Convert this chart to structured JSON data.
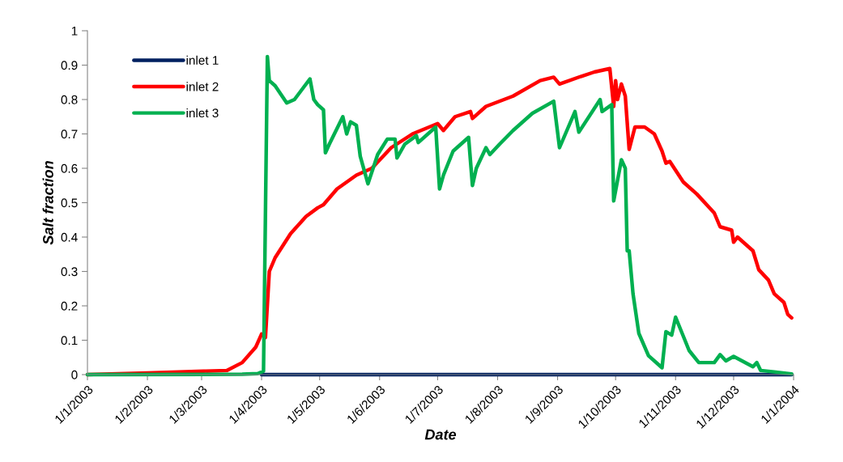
{
  "chart_data": {
    "type": "line",
    "xlabel": "Date",
    "ylabel": "Salt fraction",
    "xlim": [
      "2003-01-01",
      "2004-01-01"
    ],
    "xticks": [
      {
        "value": "2003-01-01",
        "label": "1/1/2003"
      },
      {
        "value": "2003-02-01",
        "label": "1/2/2003"
      },
      {
        "value": "2003-03-01",
        "label": "1/3/2003"
      },
      {
        "value": "2003-04-01",
        "label": "1/4/2003"
      },
      {
        "value": "2003-05-01",
        "label": "1/5/2003"
      },
      {
        "value": "2003-06-01",
        "label": "1/6/2003"
      },
      {
        "value": "2003-07-01",
        "label": "1/7/2003"
      },
      {
        "value": "2003-08-01",
        "label": "1/8/2003"
      },
      {
        "value": "2003-09-01",
        "label": "1/9/2003"
      },
      {
        "value": "2003-10-01",
        "label": "1/10/2003"
      },
      {
        "value": "2003-11-01",
        "label": "1/11/2003"
      },
      {
        "value": "2003-12-01",
        "label": "1/12/2003"
      },
      {
        "value": "2004-01-01",
        "label": "1/1/2004"
      }
    ],
    "ylim": [
      0,
      1
    ],
    "yticks": [
      0,
      0.1,
      0.2,
      0.3,
      0.4,
      0.5,
      0.6,
      0.7,
      0.8,
      0.9,
      1
    ],
    "grid": false,
    "legend": "top left",
    "marker": "none",
    "line_style": "solid",
    "series": [
      {
        "name": "inlet 1",
        "color": "#002060",
        "x": [
          "2003-04-01",
          "2003-12-31"
        ],
        "values": [
          0,
          0
        ]
      },
      {
        "name": "inlet 2",
        "color": "#ff0000",
        "x": [
          "2003-01-01",
          "2003-02-01",
          "2003-03-02",
          "2003-03-14",
          "2003-03-22",
          "2003-03-29",
          "2003-04-01",
          "2003-04-03",
          "2003-04-05",
          "2003-04-08",
          "2003-04-16",
          "2003-04-24",
          "2003-04-30",
          "2003-05-03",
          "2003-05-10",
          "2003-05-20",
          "2003-05-28",
          "2003-06-07",
          "2003-06-18",
          "2003-07-01",
          "2003-07-04",
          "2003-07-10",
          "2003-07-18",
          "2003-07-19",
          "2003-07-26",
          "2003-08-09",
          "2003-08-23",
          "2003-08-30",
          "2003-09-02",
          "2003-09-13",
          "2003-09-20",
          "2003-09-28",
          "2003-09-30",
          "2003-10-01",
          "2003-10-02",
          "2003-10-04",
          "2003-10-06",
          "2003-10-08",
          "2003-10-11",
          "2003-10-16",
          "2003-10-21",
          "2003-10-25",
          "2003-10-27",
          "2003-10-29",
          "2003-11-05",
          "2003-11-12",
          "2003-11-21",
          "2003-11-24",
          "2003-11-30",
          "2003-12-01",
          "2003-12-03",
          "2003-12-11",
          "2003-12-14",
          "2003-12-19",
          "2003-12-22",
          "2003-12-27",
          "2003-12-29",
          "2003-12-31"
        ],
        "values": [
          0.0,
          0.005,
          0.01,
          0.012,
          0.035,
          0.08,
          0.118,
          0.108,
          0.3,
          0.34,
          0.41,
          0.46,
          0.485,
          0.494,
          0.54,
          0.58,
          0.6,
          0.66,
          0.7,
          0.73,
          0.71,
          0.75,
          0.765,
          0.745,
          0.78,
          0.81,
          0.855,
          0.865,
          0.845,
          0.867,
          0.88,
          0.89,
          0.78,
          0.855,
          0.8,
          0.845,
          0.81,
          0.655,
          0.72,
          0.72,
          0.7,
          0.65,
          0.615,
          0.62,
          0.56,
          0.525,
          0.47,
          0.43,
          0.42,
          0.385,
          0.4,
          0.36,
          0.305,
          0.275,
          0.235,
          0.21,
          0.175,
          0.165
        ]
      },
      {
        "name": "inlet 3",
        "color": "#00b050",
        "x": [
          "2003-01-01",
          "2003-03-22",
          "2003-03-30",
          "2003-04-02",
          "2003-04-04",
          "2003-04-05",
          "2003-04-08",
          "2003-04-14",
          "2003-04-18",
          "2003-04-26",
          "2003-04-28",
          "2003-04-30",
          "2003-05-03",
          "2003-05-04",
          "2003-05-06",
          "2003-05-13",
          "2003-05-15",
          "2003-05-17",
          "2003-05-20",
          "2003-05-22",
          "2003-05-26",
          "2003-05-31",
          "2003-06-05",
          "2003-06-09",
          "2003-06-10",
          "2003-06-14",
          "2003-06-20",
          "2003-06-21",
          "2003-06-30",
          "2003-07-02",
          "2003-07-04",
          "2003-07-09",
          "2003-07-17",
          "2003-07-19",
          "2003-07-21",
          "2003-07-26",
          "2003-07-28",
          "2003-08-02",
          "2003-08-09",
          "2003-08-19",
          "2003-08-30",
          "2003-09-02",
          "2003-09-10",
          "2003-09-12",
          "2003-09-23",
          "2003-09-24",
          "2003-09-29",
          "2003-09-30",
          "2003-10-02",
          "2003-10-04",
          "2003-10-06",
          "2003-10-07",
          "2003-10-08",
          "2003-10-10",
          "2003-10-13",
          "2003-10-18",
          "2003-10-23",
          "2003-10-25",
          "2003-10-27",
          "2003-10-30",
          "2003-11-01",
          "2003-11-08",
          "2003-11-13",
          "2003-11-21",
          "2003-11-24",
          "2003-11-27",
          "2003-12-01",
          "2003-12-11",
          "2003-12-13",
          "2003-12-15",
          "2003-12-22",
          "2003-12-31"
        ],
        "values": [
          0,
          0.001,
          0.003,
          0.01,
          0.925,
          0.855,
          0.84,
          0.79,
          0.8,
          0.86,
          0.8,
          0.785,
          0.77,
          0.645,
          0.67,
          0.75,
          0.7,
          0.735,
          0.725,
          0.635,
          0.555,
          0.64,
          0.685,
          0.685,
          0.63,
          0.67,
          0.695,
          0.675,
          0.72,
          0.54,
          0.58,
          0.65,
          0.69,
          0.55,
          0.6,
          0.66,
          0.64,
          0.67,
          0.71,
          0.76,
          0.795,
          0.66,
          0.765,
          0.705,
          0.8,
          0.765,
          0.785,
          0.505,
          0.565,
          0.625,
          0.6,
          0.36,
          0.36,
          0.235,
          0.12,
          0.055,
          0.03,
          0.02,
          0.125,
          0.115,
          0.167,
          0.07,
          0.035,
          0.035,
          0.058,
          0.04,
          0.053,
          0.023,
          0.035,
          0.012,
          0.008,
          0.002
        ]
      }
    ]
  }
}
